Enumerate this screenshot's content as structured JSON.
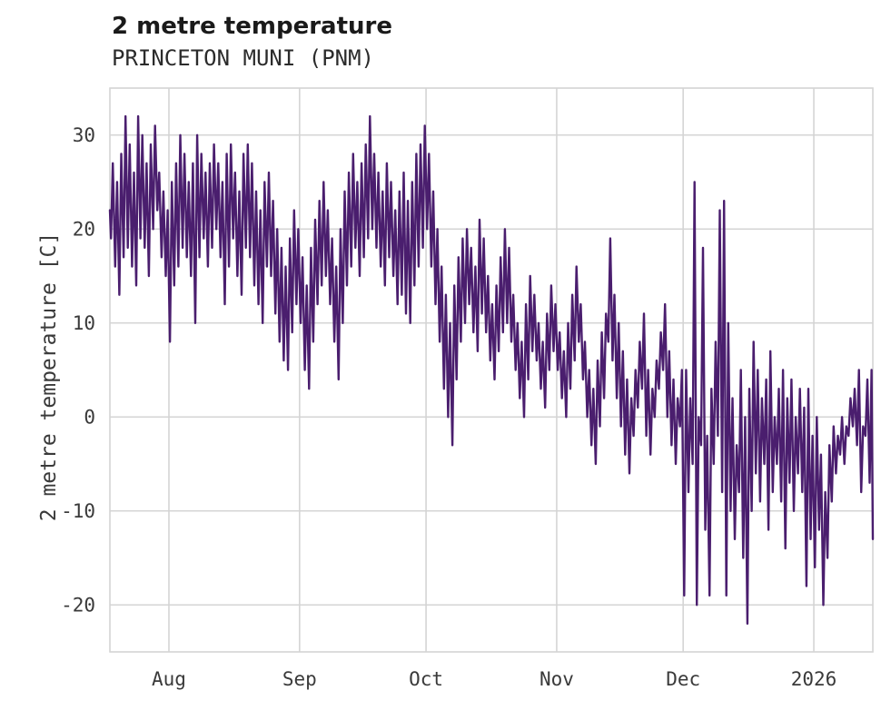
{
  "header": {
    "title": "2 metre temperature",
    "subtitle": "PRINCETON MUNI (PNM)"
  },
  "chart_data": {
    "type": "line",
    "title": "2 metre temperature",
    "subtitle": "PRINCETON MUNI (PNM)",
    "series_name": "2 metre temperature",
    "xlabel": "",
    "ylabel": "2 metre temperature [C]",
    "grid": true,
    "legend": false,
    "xlim": [
      0,
      181
    ],
    "ylim": [
      -25,
      35
    ],
    "y_ticks": [
      -20,
      -10,
      0,
      10,
      20,
      30
    ],
    "x_ticks": [
      {
        "label": "Aug",
        "day": 14
      },
      {
        "label": "Sep",
        "day": 45
      },
      {
        "label": "Oct",
        "day": 75
      },
      {
        "label": "Nov",
        "day": 106
      },
      {
        "label": "Dec",
        "day": 136
      },
      {
        "label": "2026",
        "day": 167
      }
    ],
    "colors": {
      "line": "#4a1e6e",
      "grid": "#d4d4d4",
      "text": "#3a3a3a"
    },
    "x_unit": "days",
    "points": [
      [
        0,
        22
      ],
      [
        0.25,
        19
      ],
      [
        0.7,
        27
      ],
      [
        1.25,
        16
      ],
      [
        1.7,
        25
      ],
      [
        2.25,
        13
      ],
      [
        2.7,
        28
      ],
      [
        3.25,
        17
      ],
      [
        3.7,
        32
      ],
      [
        4.25,
        18
      ],
      [
        4.7,
        29
      ],
      [
        5.25,
        16
      ],
      [
        5.7,
        26
      ],
      [
        6.25,
        14
      ],
      [
        6.7,
        32
      ],
      [
        7.25,
        19
      ],
      [
        7.7,
        30
      ],
      [
        8.25,
        18
      ],
      [
        8.7,
        27
      ],
      [
        9.25,
        15
      ],
      [
        9.7,
        29
      ],
      [
        10.25,
        20
      ],
      [
        10.7,
        31
      ],
      [
        11.25,
        22
      ],
      [
        11.7,
        26
      ],
      [
        12.25,
        17
      ],
      [
        12.7,
        24
      ],
      [
        13.25,
        15
      ],
      [
        13.7,
        22
      ],
      [
        14.25,
        8
      ],
      [
        14.7,
        25
      ],
      [
        15.25,
        14
      ],
      [
        15.7,
        27
      ],
      [
        16.25,
        16
      ],
      [
        16.7,
        30
      ],
      [
        17.25,
        18
      ],
      [
        17.7,
        28
      ],
      [
        18.25,
        17
      ],
      [
        18.7,
        25
      ],
      [
        19.25,
        15
      ],
      [
        19.7,
        27
      ],
      [
        20.25,
        10
      ],
      [
        20.7,
        30
      ],
      [
        21.25,
        17
      ],
      [
        21.7,
        28
      ],
      [
        22.25,
        19
      ],
      [
        22.7,
        26
      ],
      [
        23.25,
        16
      ],
      [
        23.7,
        27
      ],
      [
        24.25,
        18
      ],
      [
        24.7,
        29
      ],
      [
        25.25,
        20
      ],
      [
        25.7,
        27
      ],
      [
        26.25,
        17
      ],
      [
        26.7,
        25
      ],
      [
        27.25,
        12
      ],
      [
        27.7,
        28
      ],
      [
        28.25,
        16
      ],
      [
        28.7,
        29
      ],
      [
        29.25,
        19
      ],
      [
        29.7,
        26
      ],
      [
        30.25,
        15
      ],
      [
        30.7,
        24
      ],
      [
        31.25,
        13
      ],
      [
        31.7,
        28
      ],
      [
        32.25,
        18
      ],
      [
        32.7,
        29
      ],
      [
        33.25,
        17
      ],
      [
        33.7,
        27
      ],
      [
        34.25,
        14
      ],
      [
        34.7,
        24
      ],
      [
        35.25,
        12
      ],
      [
        35.7,
        22
      ],
      [
        36.25,
        10
      ],
      [
        36.7,
        25
      ],
      [
        37.25,
        16
      ],
      [
        37.7,
        26
      ],
      [
        38.25,
        15
      ],
      [
        38.7,
        23
      ],
      [
        39.25,
        11
      ],
      [
        39.7,
        20
      ],
      [
        40.25,
        8
      ],
      [
        40.7,
        18
      ],
      [
        41.25,
        6
      ],
      [
        41.7,
        16
      ],
      [
        42.25,
        5
      ],
      [
        42.7,
        19
      ],
      [
        43.25,
        9
      ],
      [
        43.7,
        22
      ],
      [
        44.25,
        12
      ],
      [
        44.7,
        20
      ],
      [
        45.25,
        10
      ],
      [
        45.7,
        17
      ],
      [
        46.25,
        5
      ],
      [
        46.7,
        14
      ],
      [
        47.25,
        3
      ],
      [
        47.7,
        18
      ],
      [
        48.25,
        8
      ],
      [
        48.7,
        21
      ],
      [
        49.25,
        12
      ],
      [
        49.7,
        23
      ],
      [
        50.25,
        14
      ],
      [
        50.7,
        25
      ],
      [
        51.25,
        15
      ],
      [
        51.7,
        22
      ],
      [
        52.25,
        12
      ],
      [
        52.7,
        19
      ],
      [
        53.25,
        8
      ],
      [
        53.7,
        16
      ],
      [
        54.25,
        4
      ],
      [
        54.7,
        20
      ],
      [
        55.25,
        10
      ],
      [
        55.7,
        24
      ],
      [
        56.25,
        14
      ],
      [
        56.7,
        26
      ],
      [
        57.25,
        16
      ],
      [
        57.7,
        28
      ],
      [
        58.25,
        18
      ],
      [
        58.7,
        25
      ],
      [
        59.25,
        15
      ],
      [
        59.7,
        27
      ],
      [
        60.25,
        17
      ],
      [
        60.7,
        29
      ],
      [
        61.25,
        19
      ],
      [
        61.7,
        32
      ],
      [
        62.25,
        20
      ],
      [
        62.7,
        28
      ],
      [
        63.25,
        18
      ],
      [
        63.7,
        26
      ],
      [
        64.25,
        16
      ],
      [
        64.7,
        24
      ],
      [
        65.25,
        14
      ],
      [
        65.7,
        27
      ],
      [
        66.25,
        17
      ],
      [
        66.7,
        25
      ],
      [
        67.25,
        15
      ],
      [
        67.7,
        22
      ],
      [
        68.25,
        12
      ],
      [
        68.7,
        24
      ],
      [
        69.25,
        13
      ],
      [
        69.7,
        26
      ],
      [
        70.25,
        11
      ],
      [
        70.7,
        23
      ],
      [
        71.25,
        10
      ],
      [
        71.7,
        25
      ],
      [
        72.25,
        14
      ],
      [
        72.7,
        28
      ],
      [
        73.25,
        16
      ],
      [
        73.7,
        29
      ],
      [
        74.25,
        18
      ],
      [
        74.7,
        31
      ],
      [
        75.25,
        20
      ],
      [
        75.7,
        28
      ],
      [
        76.25,
        16
      ],
      [
        76.7,
        24
      ],
      [
        77.25,
        12
      ],
      [
        77.7,
        20
      ],
      [
        78.25,
        8
      ],
      [
        78.7,
        16
      ],
      [
        79.25,
        3
      ],
      [
        79.7,
        13
      ],
      [
        80.25,
        0
      ],
      [
        80.7,
        10
      ],
      [
        81.25,
        -3
      ],
      [
        81.7,
        14
      ],
      [
        82.25,
        4
      ],
      [
        82.7,
        17
      ],
      [
        83.25,
        8
      ],
      [
        83.7,
        19
      ],
      [
        84.25,
        10
      ],
      [
        84.7,
        20
      ],
      [
        85.25,
        12
      ],
      [
        85.7,
        18
      ],
      [
        86.25,
        9
      ],
      [
        86.7,
        16
      ],
      [
        87.25,
        7
      ],
      [
        87.7,
        21
      ],
      [
        88.25,
        11
      ],
      [
        88.7,
        19
      ],
      [
        89.25,
        9
      ],
      [
        89.7,
        15
      ],
      [
        90.25,
        6
      ],
      [
        90.7,
        12
      ],
      [
        91.25,
        4
      ],
      [
        91.7,
        14
      ],
      [
        92.25,
        7
      ],
      [
        92.7,
        17
      ],
      [
        93.25,
        9
      ],
      [
        93.7,
        20
      ],
      [
        94.25,
        10
      ],
      [
        94.7,
        18
      ],
      [
        95.25,
        8
      ],
      [
        95.7,
        13
      ],
      [
        96.25,
        5
      ],
      [
        96.7,
        10
      ],
      [
        97.25,
        2
      ],
      [
        97.7,
        8
      ],
      [
        98.25,
        0
      ],
      [
        98.7,
        12
      ],
      [
        99.25,
        4
      ],
      [
        99.7,
        15
      ],
      [
        100.25,
        7
      ],
      [
        100.7,
        13
      ],
      [
        101.25,
        6
      ],
      [
        101.7,
        10
      ],
      [
        102.25,
        3
      ],
      [
        102.7,
        8
      ],
      [
        103.25,
        1
      ],
      [
        103.7,
        11
      ],
      [
        104.25,
        5
      ],
      [
        104.7,
        14
      ],
      [
        105.25,
        7
      ],
      [
        105.7,
        12
      ],
      [
        106.25,
        5
      ],
      [
        106.7,
        9
      ],
      [
        107.25,
        2
      ],
      [
        107.7,
        7
      ],
      [
        108.25,
        0
      ],
      [
        108.7,
        10
      ],
      [
        109.25,
        3
      ],
      [
        109.7,
        13
      ],
      [
        110.25,
        6
      ],
      [
        110.7,
        16
      ],
      [
        111.25,
        8
      ],
      [
        111.7,
        12
      ],
      [
        112.25,
        4
      ],
      [
        112.7,
        8
      ],
      [
        113.25,
        0
      ],
      [
        113.7,
        5
      ],
      [
        114.25,
        -3
      ],
      [
        114.7,
        3
      ],
      [
        115.25,
        -5
      ],
      [
        115.7,
        6
      ],
      [
        116.25,
        -1
      ],
      [
        116.7,
        9
      ],
      [
        117.25,
        2
      ],
      [
        117.7,
        11
      ],
      [
        118.25,
        8
      ],
      [
        118.7,
        19
      ],
      [
        119.25,
        6
      ],
      [
        119.7,
        13
      ],
      [
        120.25,
        2
      ],
      [
        120.7,
        10
      ],
      [
        121.25,
        -1
      ],
      [
        121.7,
        7
      ],
      [
        122.25,
        -4
      ],
      [
        122.7,
        4
      ],
      [
        123.25,
        -6
      ],
      [
        123.7,
        2
      ],
      [
        124.25,
        -2
      ],
      [
        124.7,
        5
      ],
      [
        125.25,
        1
      ],
      [
        125.7,
        8
      ],
      [
        126.25,
        3
      ],
      [
        126.7,
        11
      ],
      [
        127.25,
        -2
      ],
      [
        127.7,
        5
      ],
      [
        128.25,
        -4
      ],
      [
        128.7,
        3
      ],
      [
        129.25,
        0
      ],
      [
        129.7,
        6
      ],
      [
        130.25,
        3
      ],
      [
        130.7,
        9
      ],
      [
        131.25,
        5
      ],
      [
        131.7,
        12
      ],
      [
        132.25,
        0
      ],
      [
        132.7,
        7
      ],
      [
        133.25,
        -3
      ],
      [
        133.7,
        4
      ],
      [
        134.25,
        -5
      ],
      [
        134.7,
        2
      ],
      [
        135.25,
        -1
      ],
      [
        135.7,
        5
      ],
      [
        136.25,
        -19
      ],
      [
        136.7,
        5
      ],
      [
        137.25,
        -8
      ],
      [
        137.7,
        2
      ],
      [
        138.25,
        -5
      ],
      [
        138.7,
        25
      ],
      [
        139.25,
        -20
      ],
      [
        139.7,
        0
      ],
      [
        140.25,
        -3
      ],
      [
        140.7,
        18
      ],
      [
        141.25,
        -12
      ],
      [
        141.7,
        -2
      ],
      [
        142.25,
        -19
      ],
      [
        142.7,
        3
      ],
      [
        143.25,
        -5
      ],
      [
        143.7,
        8
      ],
      [
        144.25,
        -2
      ],
      [
        144.7,
        22
      ],
      [
        145.25,
        -8
      ],
      [
        145.7,
        23
      ],
      [
        146.25,
        -19
      ],
      [
        146.7,
        10
      ],
      [
        147.25,
        -10
      ],
      [
        147.7,
        2
      ],
      [
        148.25,
        -13
      ],
      [
        148.7,
        -3
      ],
      [
        149.25,
        -8
      ],
      [
        149.7,
        5
      ],
      [
        150.25,
        -15
      ],
      [
        150.7,
        0
      ],
      [
        151.25,
        -22
      ],
      [
        151.7,
        3
      ],
      [
        152.25,
        -10
      ],
      [
        152.7,
        8
      ],
      [
        153.25,
        -6
      ],
      [
        153.7,
        5
      ],
      [
        154.25,
        -9
      ],
      [
        154.7,
        2
      ],
      [
        155.25,
        -5
      ],
      [
        155.7,
        4
      ],
      [
        156.25,
        -12
      ],
      [
        156.7,
        7
      ],
      [
        157.25,
        -8
      ],
      [
        157.7,
        0
      ],
      [
        158.25,
        -5
      ],
      [
        158.7,
        3
      ],
      [
        159.25,
        -9
      ],
      [
        159.7,
        5
      ],
      [
        160.25,
        -14
      ],
      [
        160.7,
        2
      ],
      [
        161.25,
        -7
      ],
      [
        161.7,
        4
      ],
      [
        162.25,
        -10
      ],
      [
        162.7,
        0
      ],
      [
        163.25,
        -6
      ],
      [
        163.7,
        3
      ],
      [
        164.25,
        -8
      ],
      [
        164.7,
        1
      ],
      [
        165.25,
        -18
      ],
      [
        165.7,
        3
      ],
      [
        166.25,
        -13
      ],
      [
        166.7,
        -2
      ],
      [
        167.25,
        -16
      ],
      [
        167.7,
        0
      ],
      [
        168.25,
        -12
      ],
      [
        168.7,
        -4
      ],
      [
        169.25,
        -20
      ],
      [
        169.7,
        -8
      ],
      [
        170.25,
        -15
      ],
      [
        170.7,
        -3
      ],
      [
        171.25,
        -9
      ],
      [
        171.7,
        -1
      ],
      [
        172.25,
        -6
      ],
      [
        172.7,
        -2
      ],
      [
        173.25,
        -4
      ],
      [
        173.7,
        0
      ],
      [
        174.25,
        -5
      ],
      [
        174.7,
        -1
      ],
      [
        175.25,
        -2
      ],
      [
        175.7,
        2
      ],
      [
        176.25,
        -1
      ],
      [
        176.7,
        3
      ],
      [
        177.25,
        -3
      ],
      [
        177.7,
        5
      ],
      [
        178.25,
        -8
      ],
      [
        178.7,
        -1
      ],
      [
        179.25,
        -2
      ],
      [
        179.7,
        4
      ],
      [
        180.25,
        -7
      ],
      [
        180.7,
        5
      ],
      [
        181,
        -13
      ]
    ]
  }
}
